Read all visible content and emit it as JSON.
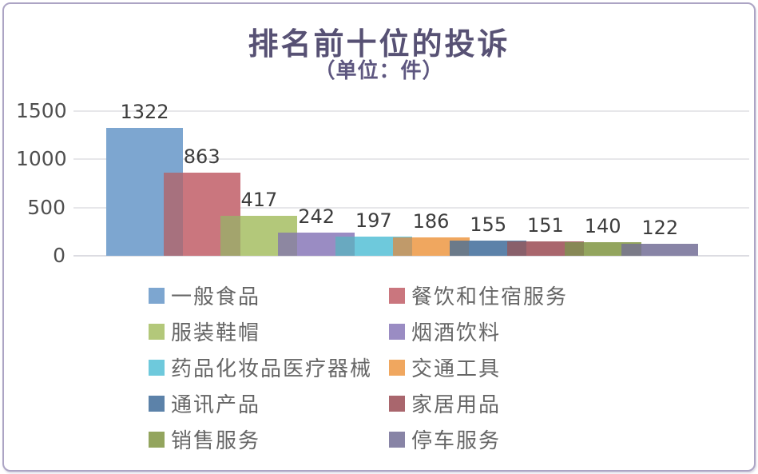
{
  "chart_data": {
    "type": "bar",
    "title": "排名前十位的投诉",
    "subtitle": "（单位：件）",
    "categories": [
      "一般食品",
      "餐饮和住宿服务",
      "服装鞋帽",
      "烟酒饮料",
      "药品化妆品医疗器械",
      "交通工具",
      "通讯产品",
      "家居用品",
      "销售服务",
      "停车服务"
    ],
    "values": [
      1322,
      863,
      417,
      242,
      197,
      186,
      155,
      151,
      140,
      122
    ],
    "colors": [
      "#7da6d0",
      "#ca767e",
      "#b3c87a",
      "#9a8cc3",
      "#6ec9dc",
      "#f0a75f",
      "#5c82a9",
      "#a9666d",
      "#93a55e",
      "#8884a6"
    ],
    "xlabel": "",
    "ylabel": "",
    "ylim": [
      0,
      1500
    ],
    "yticks": [
      0,
      500,
      1000,
      1500
    ],
    "grid": true,
    "legend_position": "bottom",
    "bars_overlap": true,
    "data_labels": true,
    "frame_border_color": "#aca4c4",
    "title_color": "#575174",
    "subtitle_color": "#5e5780"
  }
}
